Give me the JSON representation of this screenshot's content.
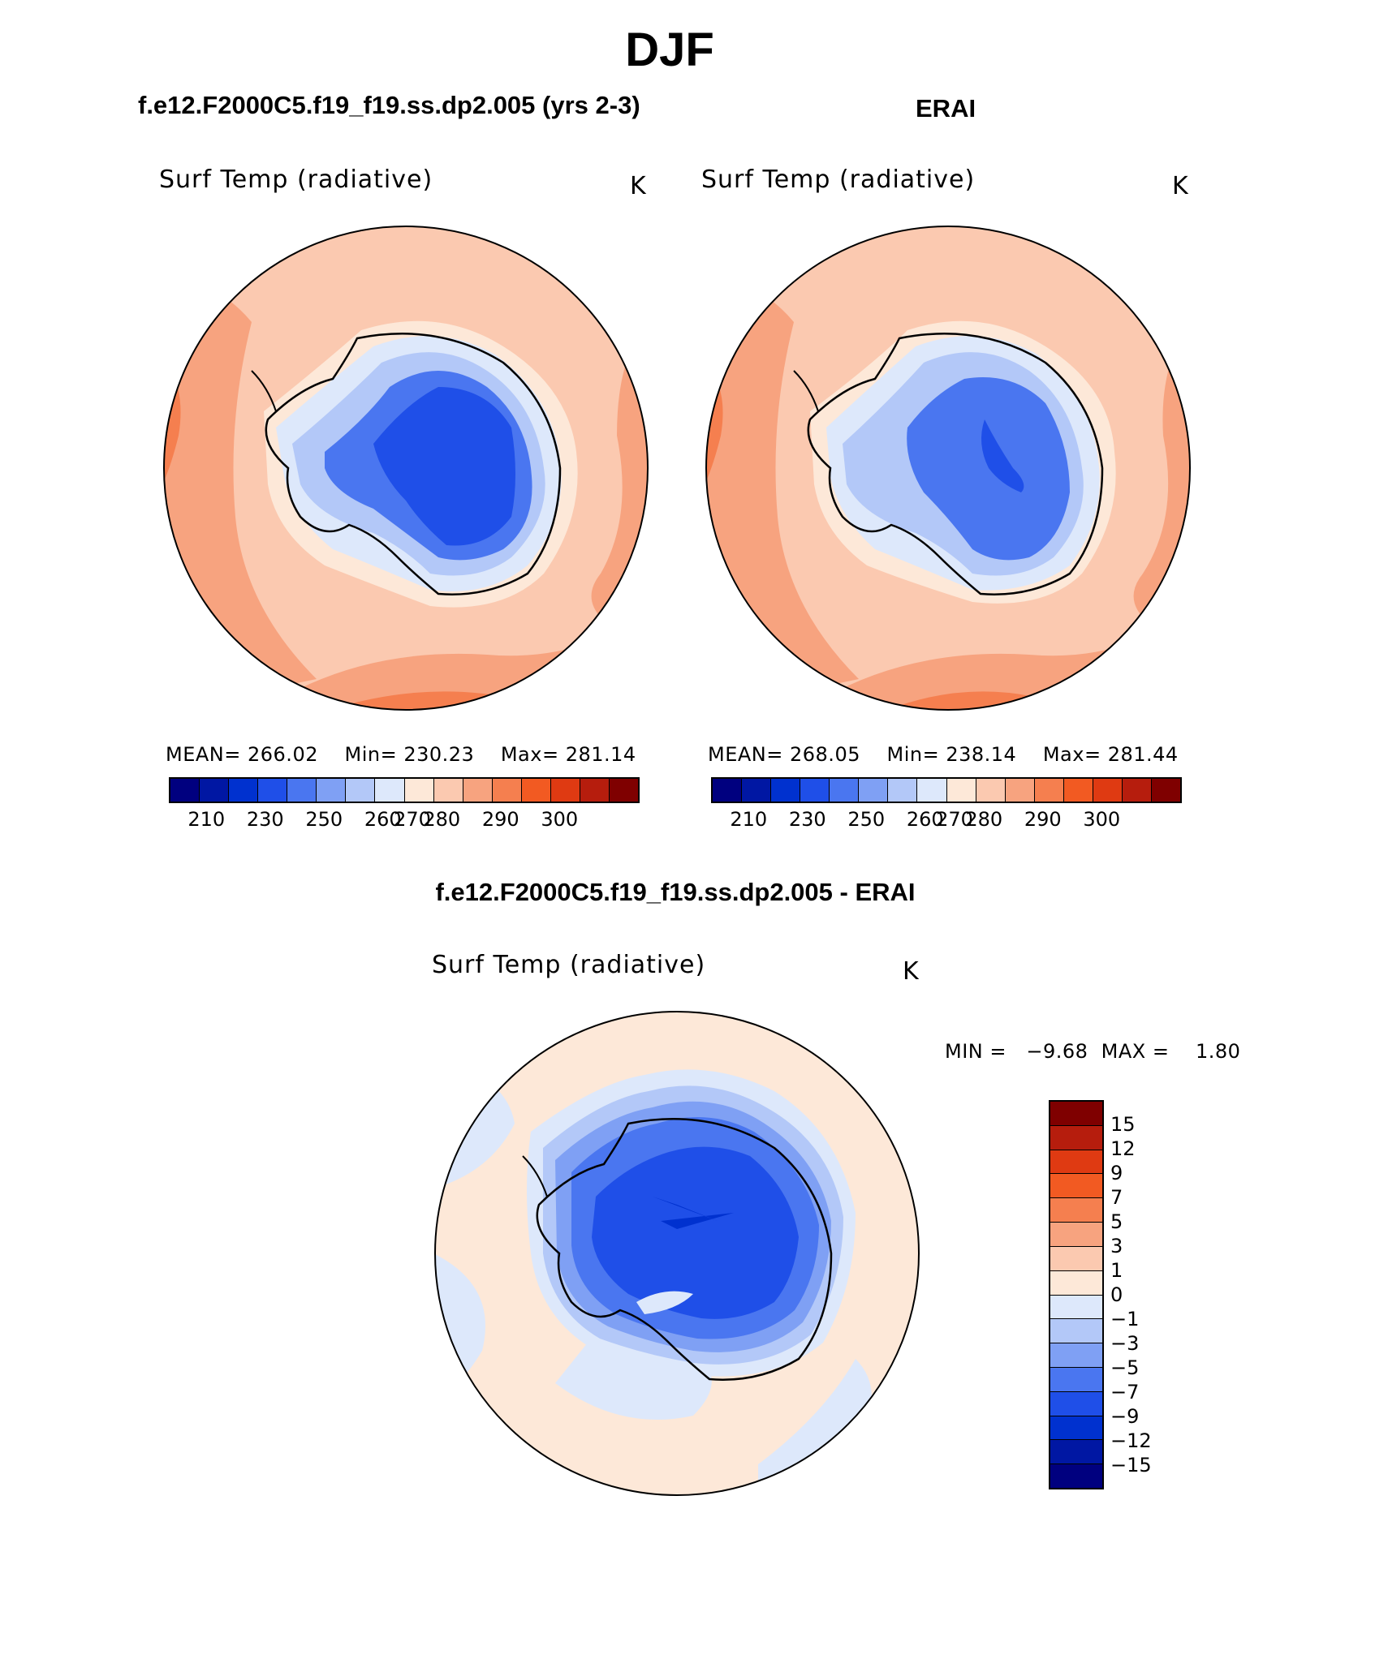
{
  "title": "DJF",
  "panels": [
    {
      "case": "f.e12.F2000C5.f19_f19.ss.dp2.005 (yrs 2-3)",
      "field": "Surf Temp (radiative)",
      "units": "K",
      "stats": {
        "mean_label": "MEAN=",
        "mean": "266.02",
        "min_label": "Min=",
        "min": "230.23",
        "max_label": "Max=",
        "max": "281.14"
      }
    },
    {
      "case": "ERAI",
      "field": "Surf Temp (radiative)",
      "units": "K",
      "stats": {
        "mean_label": "MEAN=",
        "mean": "268.05",
        "min_label": "Min=",
        "min": "238.14",
        "max_label": "Max=",
        "max": "281.44"
      }
    }
  ],
  "abs_colorbar": {
    "colors": [
      "#00007f",
      "#0017a3",
      "#0031cf",
      "#1f4fe8",
      "#4a76f0",
      "#7fa0f4",
      "#b3c8f8",
      "#dde8fb",
      "#fde8d8",
      "#fbc9b0",
      "#f7a37f",
      "#f57f4f",
      "#f25a22",
      "#df3a12",
      "#b61d0d",
      "#7f0000"
    ],
    "labels": [
      "210",
      "230",
      "250",
      "260",
      "270",
      "280",
      "290",
      "300"
    ]
  },
  "diff": {
    "title": "f.e12.F2000C5.f19_f19.ss.dp2.005 - ERAI",
    "field": "Surf Temp (radiative)",
    "units": "K",
    "minmax": "MIN =   −9.68  MAX =    1.80"
  },
  "diff_colorbar": {
    "colors": [
      "#7f0000",
      "#b61d0d",
      "#df3a12",
      "#f25a22",
      "#f57f4f",
      "#f7a37f",
      "#fbc9b0",
      "#fde8d8",
      "#dde8fb",
      "#b3c8f8",
      "#7fa0f4",
      "#4a76f0",
      "#1f4fe8",
      "#0031cf",
      "#0017a3",
      "#00007f"
    ],
    "labels": [
      "15",
      "12",
      "9",
      "7",
      "5",
      "3",
      "1",
      "0",
      "−1",
      "−3",
      "−5",
      "−7",
      "−9",
      "−12",
      "−15"
    ]
  }
}
